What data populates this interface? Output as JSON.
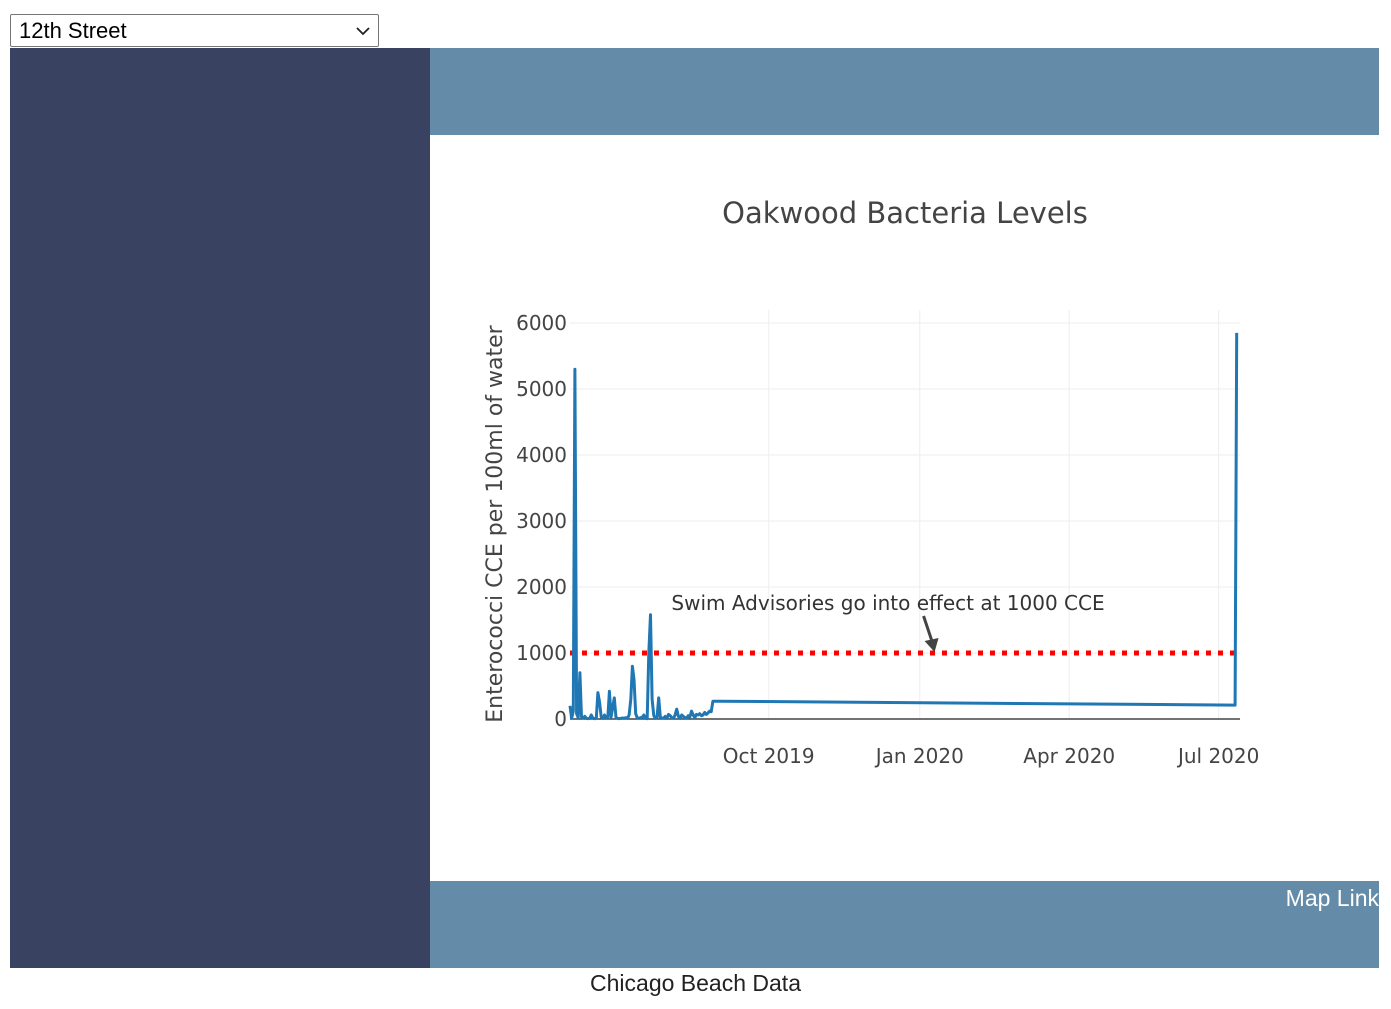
{
  "beach_selector": {
    "selected": "12th Street",
    "icon": "chevron-down-icon"
  },
  "colors": {
    "sidebar": "#394260",
    "header_band": "#648ba7",
    "footer_band": "#648ba7",
    "series_line": "#1f77b4",
    "threshold_line": "#ff0000",
    "annotation_arrow": "#444444",
    "grid": "#eeeeee"
  },
  "map_link": {
    "label": "Map Link"
  },
  "footer": {
    "text": "Chicago Beach Data"
  },
  "chart_data": {
    "type": "line",
    "title": "Oakwood Bacteria Levels",
    "xlabel": "",
    "ylabel": "Enterococci CCE per 100ml of water",
    "x_ticks": [
      "Oct 2019",
      "Jan 2020",
      "Apr 2020",
      "Jul 2020"
    ],
    "y_ticks": [
      "0",
      "1000",
      "2000",
      "3000",
      "4000",
      "5000",
      "6000"
    ],
    "xlim": [
      "2019-06-02",
      "2020-07-14"
    ],
    "ylim": [
      0,
      6000
    ],
    "grid": true,
    "legend": "none",
    "series": [
      {
        "x": [
          "2019-06-02",
          "2019-06-03",
          "2019-06-04",
          "2019-06-05",
          "2019-06-06",
          "2019-06-07",
          "2019-06-08",
          "2019-06-09",
          "2019-06-10",
          "2019-06-11",
          "2019-06-12",
          "2019-06-13",
          "2019-06-14",
          "2019-06-15",
          "2019-06-16",
          "2019-06-17",
          "2019-06-18",
          "2019-06-19",
          "2019-06-20",
          "2019-06-21",
          "2019-06-22",
          "2019-06-23",
          "2019-06-24",
          "2019-06-25",
          "2019-06-26",
          "2019-06-27",
          "2019-06-28",
          "2019-06-29",
          "2019-06-30",
          "2019-07-01",
          "2019-07-02",
          "2019-07-03",
          "2019-07-04",
          "2019-07-05",
          "2019-07-06",
          "2019-07-07",
          "2019-07-08",
          "2019-07-09",
          "2019-07-10",
          "2019-07-11",
          "2019-07-12",
          "2019-07-13",
          "2019-07-14",
          "2019-07-15",
          "2019-07-16",
          "2019-07-17",
          "2019-07-18",
          "2019-07-19",
          "2019-07-20",
          "2019-07-21",
          "2019-07-22",
          "2019-07-23",
          "2019-07-24",
          "2019-07-25",
          "2019-07-26",
          "2019-07-27",
          "2019-07-28",
          "2019-07-29",
          "2019-07-30",
          "2019-07-31",
          "2019-08-01",
          "2019-08-02",
          "2019-08-03",
          "2019-08-04",
          "2019-08-05",
          "2019-08-06",
          "2019-08-07",
          "2019-08-08",
          "2019-08-09",
          "2019-08-10",
          "2019-08-11",
          "2019-08-12",
          "2019-08-13",
          "2019-08-14",
          "2019-08-15",
          "2019-08-16",
          "2019-08-17",
          "2019-08-18",
          "2019-08-19",
          "2019-08-20",
          "2019-08-21",
          "2019-08-22",
          "2019-08-23",
          "2019-08-24",
          "2019-08-25",
          "2019-08-26",
          "2019-08-27",
          "2019-08-28",
          "2019-08-29",
          "2019-08-30",
          "2019-08-31",
          "2019-09-01",
          "2020-07-11",
          "2020-07-12"
        ],
        "y": [
          200,
          10,
          120,
          5300,
          80,
          20,
          700,
          30,
          15,
          40,
          10,
          5,
          10,
          60,
          10,
          5,
          15,
          400,
          250,
          30,
          10,
          60,
          20,
          10,
          420,
          30,
          180,
          320,
          20,
          10,
          5,
          10,
          15,
          10,
          20,
          10,
          60,
          300,
          800,
          600,
          80,
          15,
          10,
          20,
          30,
          60,
          10,
          5,
          1000,
          1580,
          300,
          50,
          10,
          20,
          320,
          30,
          10,
          15,
          40,
          10,
          70,
          50,
          20,
          10,
          60,
          150,
          40,
          10,
          60,
          40,
          20,
          10,
          50,
          30,
          120,
          60,
          20,
          70,
          60,
          80,
          50,
          60,
          100,
          70,
          90,
          120,
          110,
          270,
          270,
          270,
          270,
          270,
          210,
          5850
        ]
      }
    ],
    "threshold": {
      "value": 1000,
      "start": "2019-06-02",
      "end": "2020-07-11",
      "style": "dotted"
    },
    "annotation": {
      "text": "Swim Advisories go into effect at 1000 CCE",
      "x": "2020-01-10",
      "y": 1000
    }
  }
}
